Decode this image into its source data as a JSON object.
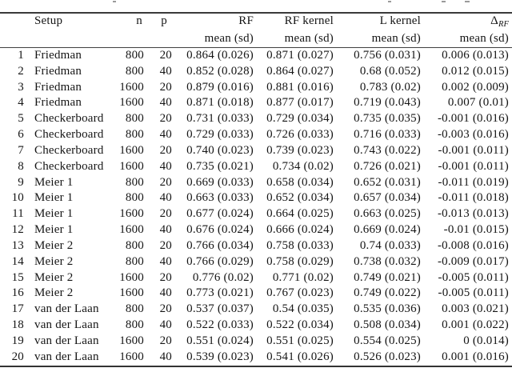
{
  "table": {
    "columns": {
      "setup": "Setup",
      "n": "n",
      "p": "p",
      "rf": "RF",
      "rf_kernel": "RF kernel",
      "l_kernel": "L kernel",
      "delta_symbol": "Δ",
      "delta_sub": "RF",
      "mean_sd": "mean (sd)"
    },
    "rows": [
      {
        "id": "1",
        "setup": "Friedman",
        "n": "800",
        "p": "20",
        "rf": "0.864 (0.026)",
        "rf_kernel": "0.871 (0.027)",
        "l_kernel": "0.756 (0.031)",
        "delta": "0.006 (0.013)"
      },
      {
        "id": "2",
        "setup": "Friedman",
        "n": "800",
        "p": "40",
        "rf": "0.852 (0.028)",
        "rf_kernel": "0.864 (0.027)",
        "l_kernel": "0.68 (0.052)",
        "delta": "0.012 (0.015)"
      },
      {
        "id": "3",
        "setup": "Friedman",
        "n": "1600",
        "p": "20",
        "rf": "0.879 (0.016)",
        "rf_kernel": "0.881 (0.016)",
        "l_kernel": "0.783 (0.02)",
        "delta": "0.002 (0.009)"
      },
      {
        "id": "4",
        "setup": "Friedman",
        "n": "1600",
        "p": "40",
        "rf": "0.871 (0.018)",
        "rf_kernel": "0.877 (0.017)",
        "l_kernel": "0.719 (0.043)",
        "delta": "0.007 (0.01)"
      },
      {
        "id": "5",
        "setup": "Checkerboard",
        "n": "800",
        "p": "20",
        "rf": "0.731 (0.033)",
        "rf_kernel": "0.729 (0.034)",
        "l_kernel": "0.735 (0.035)",
        "delta": "-0.001 (0.016)"
      },
      {
        "id": "6",
        "setup": "Checkerboard",
        "n": "800",
        "p": "40",
        "rf": "0.729 (0.033)",
        "rf_kernel": "0.726 (0.033)",
        "l_kernel": "0.716 (0.033)",
        "delta": "-0.003 (0.016)"
      },
      {
        "id": "7",
        "setup": "Checkerboard",
        "n": "1600",
        "p": "20",
        "rf": "0.740 (0.023)",
        "rf_kernel": "0.739 (0.023)",
        "l_kernel": "0.743 (0.022)",
        "delta": "-0.001 (0.011)"
      },
      {
        "id": "8",
        "setup": "Checkerboard",
        "n": "1600",
        "p": "40",
        "rf": "0.735 (0.021)",
        "rf_kernel": "0.734 (0.02)",
        "l_kernel": "0.726 (0.021)",
        "delta": "-0.001 (0.011)"
      },
      {
        "id": "9",
        "setup": "Meier 1",
        "n": "800",
        "p": "20",
        "rf": "0.669 (0.033)",
        "rf_kernel": "0.658 (0.034)",
        "l_kernel": "0.652 (0.031)",
        "delta": "-0.011 (0.019)"
      },
      {
        "id": "10",
        "setup": "Meier 1",
        "n": "800",
        "p": "40",
        "rf": "0.663 (0.033)",
        "rf_kernel": "0.652 (0.034)",
        "l_kernel": "0.657 (0.034)",
        "delta": "-0.011 (0.018)"
      },
      {
        "id": "11",
        "setup": "Meier 1",
        "n": "1600",
        "p": "20",
        "rf": "0.677 (0.024)",
        "rf_kernel": "0.664 (0.025)",
        "l_kernel": "0.663 (0.025)",
        "delta": "-0.013 (0.013)"
      },
      {
        "id": "12",
        "setup": "Meier 1",
        "n": "1600",
        "p": "40",
        "rf": "0.676 (0.024)",
        "rf_kernel": "0.666 (0.024)",
        "l_kernel": "0.669 (0.024)",
        "delta": "-0.01 (0.015)"
      },
      {
        "id": "13",
        "setup": "Meier 2",
        "n": "800",
        "p": "20",
        "rf": "0.766 (0.034)",
        "rf_kernel": "0.758 (0.033)",
        "l_kernel": "0.74 (0.033)",
        "delta": "-0.008 (0.016)"
      },
      {
        "id": "14",
        "setup": "Meier 2",
        "n": "800",
        "p": "40",
        "rf": "0.766 (0.029)",
        "rf_kernel": "0.758 (0.029)",
        "l_kernel": "0.738 (0.032)",
        "delta": "-0.009 (0.017)"
      },
      {
        "id": "15",
        "setup": "Meier 2",
        "n": "1600",
        "p": "20",
        "rf": "0.776 (0.02)",
        "rf_kernel": "0.771 (0.02)",
        "l_kernel": "0.749 (0.021)",
        "delta": "-0.005 (0.011)"
      },
      {
        "id": "16",
        "setup": "Meier 2",
        "n": "1600",
        "p": "40",
        "rf": "0.773 (0.021)",
        "rf_kernel": "0.767 (0.023)",
        "l_kernel": "0.749 (0.022)",
        "delta": "-0.005 (0.011)"
      },
      {
        "id": "17",
        "setup": "van der Laan",
        "n": "800",
        "p": "20",
        "rf": "0.537 (0.037)",
        "rf_kernel": "0.54 (0.035)",
        "l_kernel": "0.535 (0.036)",
        "delta": "0.003 (0.021)"
      },
      {
        "id": "18",
        "setup": "van der Laan",
        "n": "800",
        "p": "40",
        "rf": "0.522 (0.033)",
        "rf_kernel": "0.522 (0.034)",
        "l_kernel": "0.508 (0.034)",
        "delta": "0.001 (0.022)"
      },
      {
        "id": "19",
        "setup": "van der Laan",
        "n": "1600",
        "p": "20",
        "rf": "0.551 (0.024)",
        "rf_kernel": "0.551 (0.025)",
        "l_kernel": "0.554 (0.025)",
        "delta": "0 (0.014)"
      },
      {
        "id": "20",
        "setup": "van der Laan",
        "n": "1600",
        "p": "40",
        "rf": "0.539 (0.023)",
        "rf_kernel": "0.541 (0.026)",
        "l_kernel": "0.526 (0.023)",
        "delta": "0.001 (0.016)"
      }
    ]
  }
}
